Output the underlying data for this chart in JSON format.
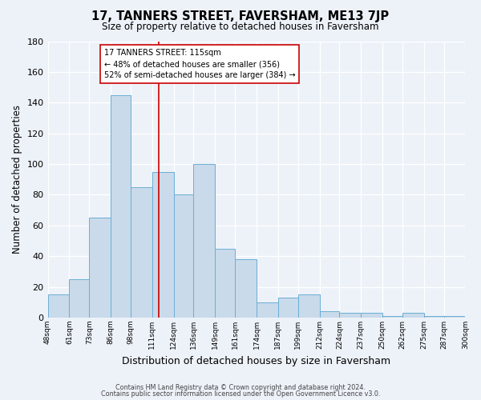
{
  "title": "17, TANNERS STREET, FAVERSHAM, ME13 7JP",
  "subtitle": "Size of property relative to detached houses in Faversham",
  "xlabel": "Distribution of detached houses by size in Faversham",
  "ylabel": "Number of detached properties",
  "bar_color": "#c9daea",
  "bar_edge_color": "#6baed6",
  "background_color": "#edf2f9",
  "grid_color": "#ffffff",
  "bins": [
    48,
    61,
    73,
    86,
    98,
    111,
    124,
    136,
    149,
    161,
    174,
    187,
    199,
    212,
    224,
    237,
    250,
    262,
    275,
    287,
    300
  ],
  "bin_labels": [
    "48sqm",
    "61sqm",
    "73sqm",
    "86sqm",
    "98sqm",
    "111sqm",
    "124sqm",
    "136sqm",
    "149sqm",
    "161sqm",
    "174sqm",
    "187sqm",
    "199sqm",
    "212sqm",
    "224sqm",
    "237sqm",
    "250sqm",
    "262sqm",
    "275sqm",
    "287sqm",
    "300sqm"
  ],
  "counts": [
    15,
    25,
    65,
    145,
    85,
    95,
    80,
    100,
    45,
    38,
    10,
    13,
    15,
    4,
    3,
    3,
    1,
    3,
    1,
    1
  ],
  "vline_x": 115,
  "vline_color": "#cc0000",
  "annotation_title": "17 TANNERS STREET: 115sqm",
  "annotation_line1": "← 48% of detached houses are smaller (356)",
  "annotation_line2": "52% of semi-detached houses are larger (384) →",
  "annotation_box_color": "#ffffff",
  "annotation_box_edge": "#cc0000",
  "ylim": [
    0,
    180
  ],
  "yticks": [
    0,
    20,
    40,
    60,
    80,
    100,
    120,
    140,
    160,
    180
  ],
  "footer1": "Contains HM Land Registry data © Crown copyright and database right 2024.",
  "footer2": "Contains public sector information licensed under the Open Government Licence v3.0."
}
